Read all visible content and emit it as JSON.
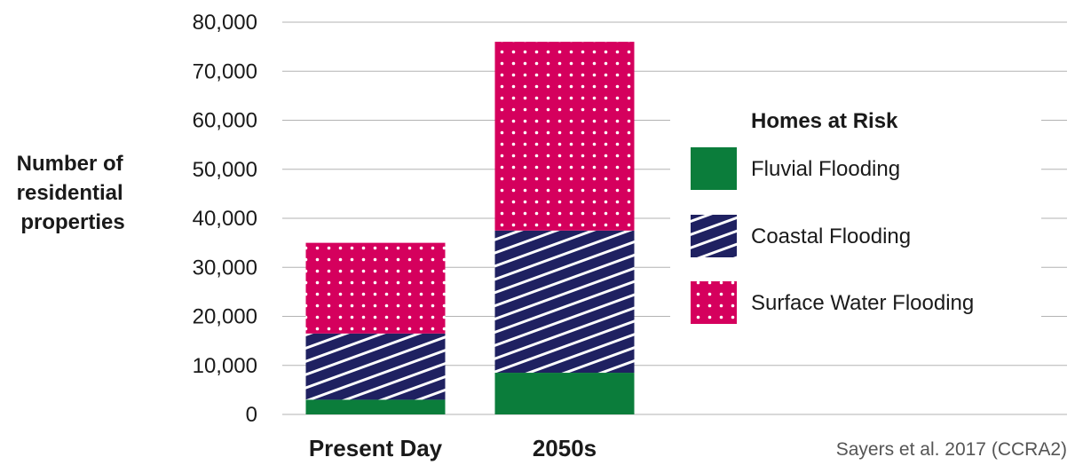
{
  "chart_data": {
    "type": "bar",
    "stacked": true,
    "title": "",
    "xlabel": "",
    "ylabel": "Number of residential properties",
    "ylabel_lines": [
      "Number of",
      "residential",
      "properties"
    ],
    "categories": [
      "Present Day",
      "2050s"
    ],
    "ylim": [
      0,
      80000
    ],
    "yticks": [
      0,
      10000,
      20000,
      30000,
      40000,
      50000,
      60000,
      70000,
      80000
    ],
    "ytick_labels": [
      "0",
      "10,000",
      "20,000",
      "30,000",
      "40,000",
      "50,000",
      "60,000",
      "70,000",
      "80,000"
    ],
    "grid": true,
    "legend": {
      "title": "Homes at Risk",
      "placement": "right"
    },
    "series": [
      {
        "name": "Fluvial Flooding",
        "values": [
          3000,
          8500
        ],
        "color": "#0b7d3b",
        "pattern": "solid"
      },
      {
        "name": "Coastal Flooding",
        "values": [
          13500,
          29000
        ],
        "color": "#1f2161",
        "pattern": "diagonal-stripes"
      },
      {
        "name": "Surface Water Flooding",
        "values": [
          18500,
          38500
        ],
        "color": "#d5005d",
        "pattern": "dots"
      }
    ],
    "annotation": "Sayers et al. 2017 (CCRA2)"
  }
}
